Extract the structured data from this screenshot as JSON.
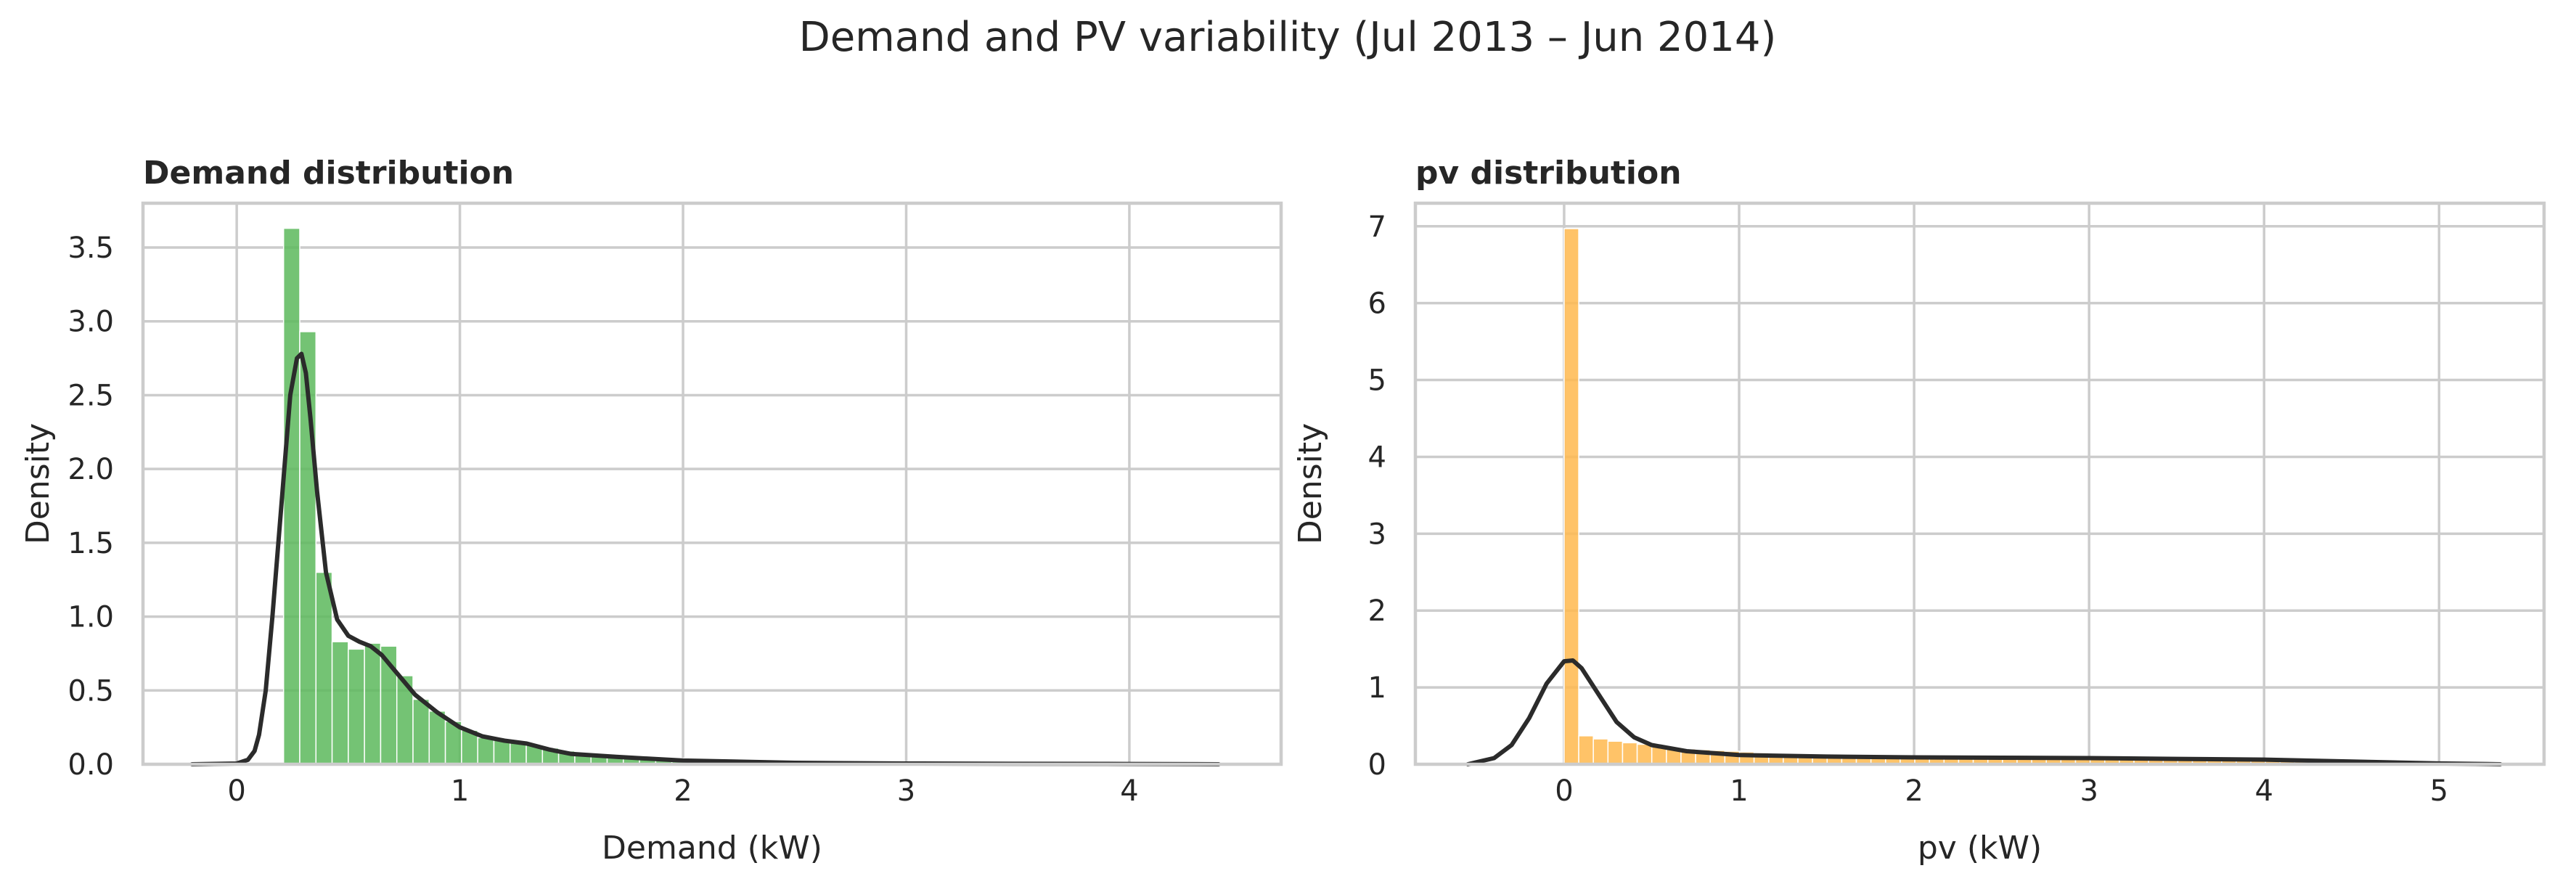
{
  "figure": {
    "title": "Demand and PV variability (Jul 2013 – Jun 2014)"
  },
  "chart_data": [
    {
      "type": "histogram",
      "title": "Demand distribution",
      "xlabel": "Demand (kW)",
      "ylabel": "Density",
      "xlim": [
        -0.42,
        4.68
      ],
      "ylim": [
        0,
        3.8
      ],
      "xticks": [
        0,
        1,
        2,
        3,
        4
      ],
      "yticks": [
        0.0,
        0.5,
        1.0,
        1.5,
        2.0,
        2.5,
        3.0,
        3.5
      ],
      "xtick_labels": [
        "0",
        "1",
        "2",
        "3",
        "4"
      ],
      "ytick_labels": [
        "0.0",
        "0.5",
        "1.0",
        "1.5",
        "2.0",
        "2.5",
        "3.0",
        "3.5"
      ],
      "grid": true,
      "color": "#5cb85c",
      "bin_start": 0.21,
      "bin_width": 0.0725,
      "densities": [
        3.63,
        2.93,
        1.3,
        0.83,
        0.78,
        0.82,
        0.8,
        0.6,
        0.44,
        0.36,
        0.29,
        0.23,
        0.18,
        0.17,
        0.15,
        0.13,
        0.11,
        0.09,
        0.08,
        0.07,
        0.06,
        0.05,
        0.05,
        0.04,
        0.04,
        0.03,
        0.02,
        0.02,
        0.02,
        0.015,
        0.012,
        0.01,
        0.01,
        0.01,
        0.008,
        0.008,
        0.007,
        0.006,
        0.006,
        0.005,
        0.005,
        0.004,
        0.004,
        0.004,
        0.003,
        0.003,
        0.003,
        0.003,
        0.002,
        0.002,
        0.002,
        0.002,
        0.002,
        0.002,
        0.002,
        0.001,
        0.001,
        0.001,
        0.001
      ],
      "kde": {
        "x": [
          -0.2,
          0.0,
          0.05,
          0.08,
          0.1,
          0.13,
          0.16,
          0.2,
          0.24,
          0.27,
          0.29,
          0.31,
          0.33,
          0.36,
          0.4,
          0.45,
          0.5,
          0.55,
          0.6,
          0.65,
          0.7,
          0.75,
          0.8,
          0.9,
          1.0,
          1.1,
          1.2,
          1.3,
          1.4,
          1.5,
          1.7,
          2.0,
          2.5,
          3.0,
          3.5,
          4.0,
          4.4
        ],
        "y": [
          0.0,
          0.005,
          0.03,
          0.09,
          0.2,
          0.5,
          1.0,
          1.75,
          2.5,
          2.75,
          2.78,
          2.65,
          2.35,
          1.85,
          1.3,
          0.98,
          0.87,
          0.83,
          0.8,
          0.74,
          0.65,
          0.56,
          0.47,
          0.35,
          0.25,
          0.19,
          0.16,
          0.14,
          0.1,
          0.07,
          0.05,
          0.025,
          0.01,
          0.005,
          0.003,
          0.002,
          0.0
        ]
      }
    },
    {
      "type": "histogram",
      "title": "pv distribution",
      "xlabel": "pv (kW)",
      "ylabel": "Density",
      "xlim": [
        -0.85,
        5.6
      ],
      "ylim": [
        0,
        7.3
      ],
      "xticks": [
        0,
        1,
        2,
        3,
        4,
        5
      ],
      "yticks": [
        0,
        1,
        2,
        3,
        4,
        5,
        6,
        7
      ],
      "xtick_labels": [
        "0",
        "1",
        "2",
        "3",
        "4",
        "5"
      ],
      "ytick_labels": [
        "0",
        "1",
        "2",
        "3",
        "4",
        "5",
        "6",
        "7"
      ],
      "grid": true,
      "color": "#ffb84d",
      "bin_start": 0.0,
      "bin_width": 0.0835,
      "densities": [
        6.97,
        0.37,
        0.33,
        0.3,
        0.28,
        0.26,
        0.24,
        0.22,
        0.2,
        0.19,
        0.18,
        0.17,
        0.16,
        0.15,
        0.14,
        0.13,
        0.12,
        0.12,
        0.11,
        0.11,
        0.1,
        0.1,
        0.1,
        0.1,
        0.09,
        0.09,
        0.09,
        0.09,
        0.09,
        0.08,
        0.08,
        0.08,
        0.08,
        0.08,
        0.08,
        0.08,
        0.08,
        0.08,
        0.07,
        0.07,
        0.07,
        0.07,
        0.07,
        0.06,
        0.06,
        0.06,
        0.05,
        0.05,
        0.05,
        0.04,
        0.04,
        0.03,
        0.03,
        0.02,
        0.02,
        0.01,
        0.01,
        0.005
      ],
      "kde": {
        "x": [
          -0.55,
          -0.4,
          -0.3,
          -0.2,
          -0.1,
          0.0,
          0.05,
          0.1,
          0.2,
          0.3,
          0.4,
          0.5,
          0.7,
          1.0,
          1.5,
          2.0,
          2.5,
          3.0,
          3.5,
          4.0,
          4.5,
          5.0,
          5.35
        ],
        "y": [
          0.0,
          0.08,
          0.25,
          0.6,
          1.05,
          1.34,
          1.35,
          1.25,
          0.9,
          0.55,
          0.35,
          0.25,
          0.17,
          0.12,
          0.1,
          0.09,
          0.085,
          0.08,
          0.07,
          0.06,
          0.035,
          0.01,
          0.0
        ]
      }
    }
  ]
}
